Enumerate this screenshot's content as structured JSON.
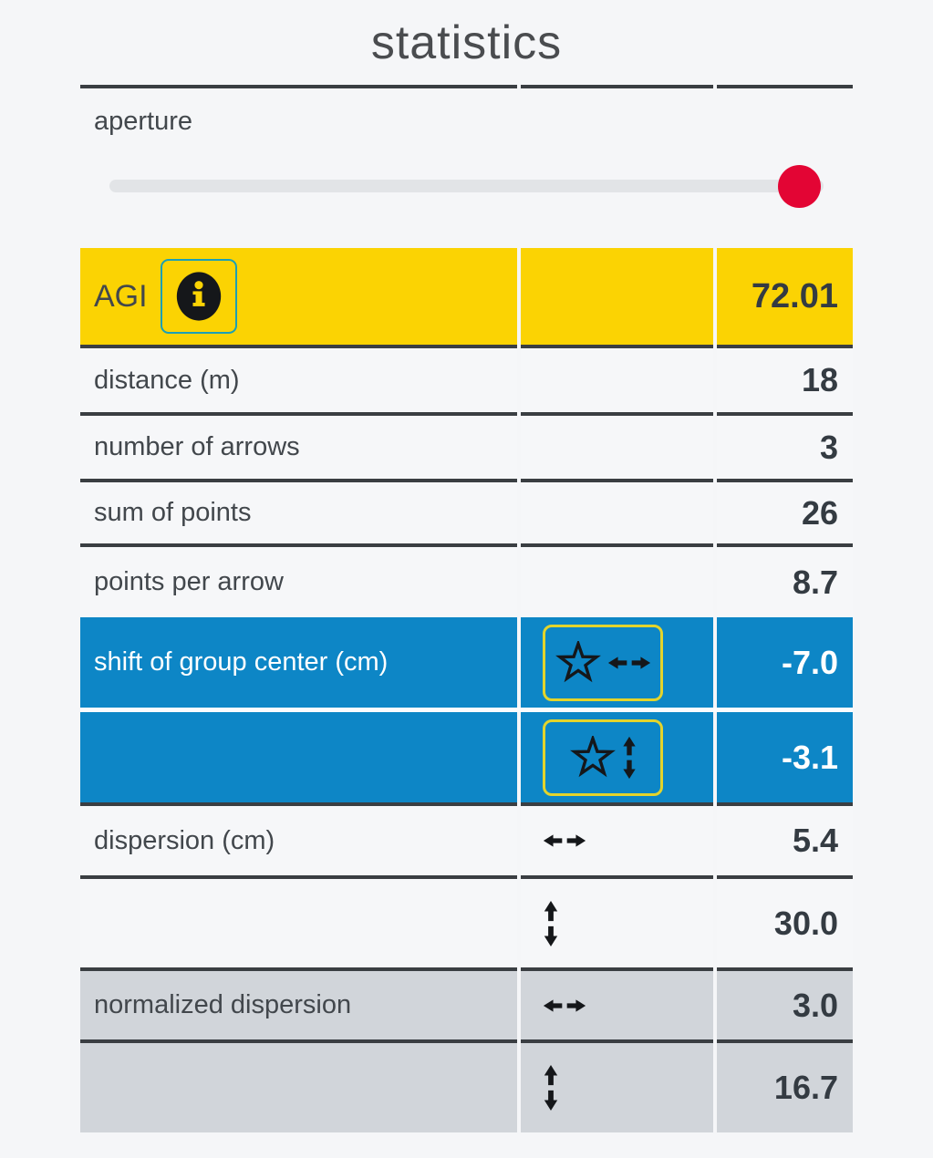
{
  "title": "statistics",
  "aperture": {
    "label": "aperture",
    "value_percent": 96
  },
  "table": {
    "rows": [
      {
        "id": "agi",
        "label": "AGI",
        "value": "72.01",
        "style": "yellow",
        "icon": "info",
        "divider_after": "dark"
      },
      {
        "id": "distance",
        "label": "distance (m)",
        "value": "18",
        "style": "light",
        "icon": "none",
        "divider_after": "dark"
      },
      {
        "id": "number-of-arrows",
        "label": "number of arrows",
        "value": "3",
        "style": "light",
        "icon": "none",
        "divider_after": "dark"
      },
      {
        "id": "sum-of-points",
        "label": "sum of points",
        "value": "26",
        "style": "light",
        "icon": "none",
        "divider_after": "dark"
      },
      {
        "id": "points-per-arrow",
        "label": "points per arrow",
        "value": "8.7",
        "style": "light",
        "icon": "none",
        "divider_after": "none"
      },
      {
        "id": "shift-horizontal",
        "label": "shift of group center (cm)",
        "value": "-7.0",
        "style": "blue",
        "icon": "star-arrows-horizontal",
        "divider_after": "white"
      },
      {
        "id": "shift-vertical",
        "label": "",
        "value": "-3.1",
        "style": "blue",
        "icon": "star-arrows-vertical",
        "divider_after": "dark"
      },
      {
        "id": "dispersion-horizontal",
        "label": "dispersion (cm)",
        "value": "5.4",
        "style": "light",
        "icon": "arrows-horizontal",
        "divider_after": "dark"
      },
      {
        "id": "dispersion-vertical",
        "label": "",
        "value": "30.0",
        "style": "light",
        "icon": "arrows-vertical",
        "divider_after": "dark"
      },
      {
        "id": "normalized-dispersion-horizontal",
        "label": "normalized dispersion",
        "value": "3.0",
        "style": "gray",
        "icon": "arrows-horizontal",
        "divider_after": "dark"
      },
      {
        "id": "normalized-dispersion-vertical",
        "label": "",
        "value": "16.7",
        "style": "gray",
        "icon": "arrows-vertical",
        "divider_after": "none"
      }
    ]
  },
  "colors": {
    "accent_yellow": "#fbd303",
    "accent_blue": "#0d86c6",
    "row_gray": "#d1d5da",
    "row_light": "#f6f7f9",
    "slider_red": "#e30534",
    "border_dark": "#3a3e42",
    "info_button_border": "#1b9fb5",
    "star_button_border": "#e3d42c",
    "icon_black": "#15171a"
  }
}
